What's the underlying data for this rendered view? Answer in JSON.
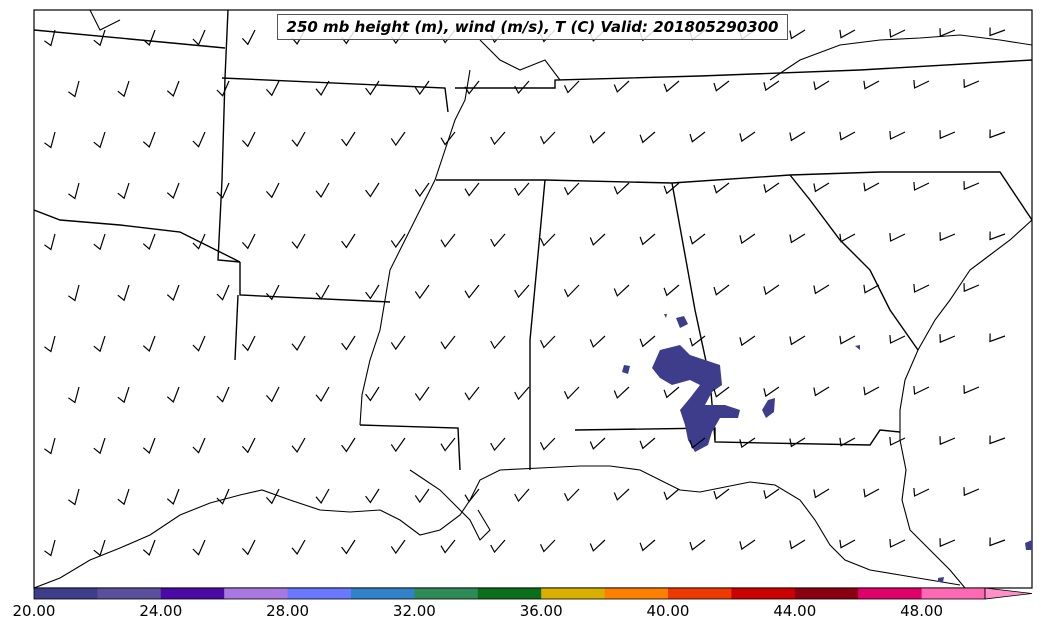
{
  "title": "250 mb height (m), wind (m/s), T (C) Valid: 201805290300",
  "colorbar": {
    "tick_labels": [
      "20.00",
      "24.00",
      "28.00",
      "32.00",
      "36.00",
      "40.00",
      "44.00",
      "48.00"
    ],
    "tick_values": [
      20,
      24,
      28,
      32,
      36,
      40,
      44,
      48
    ],
    "min": 20,
    "max": 51.5,
    "step": 2,
    "extend": "max",
    "colors": [
      "#3d3d8c",
      "#5a4f9c",
      "#4b0aa6",
      "#a878e0",
      "#6a78ff",
      "#3182c8",
      "#2e8b57",
      "#0a6e1a",
      "#d9b000",
      "#ff8000",
      "#ee3a00",
      "#cc0000",
      "#8b0010",
      "#e0006a",
      "#ff69b4"
    ],
    "extend_color": "#ff8fc8"
  },
  "shaded_field": {
    "color": "#3d3d8c"
  }
}
